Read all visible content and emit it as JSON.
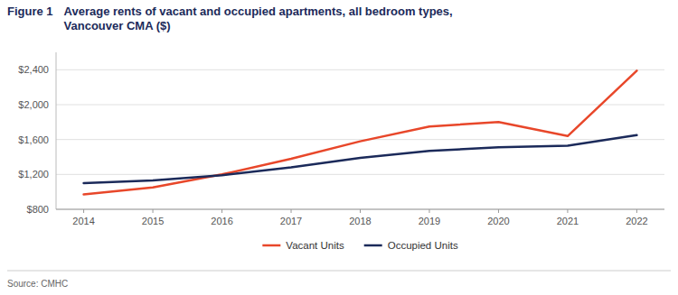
{
  "chart_data": {
    "type": "line",
    "title": "Average rents of vacant and occupied apartments, all bedroom types,\nVancouver CMA ($)",
    "annotations": [
      "Figure 1",
      "Source: CMHC"
    ],
    "x": [
      2014,
      2015,
      2016,
      2017,
      2018,
      2019,
      2020,
      2021,
      2022
    ],
    "series": [
      {
        "name": "Vacant Units",
        "color": "#E8472A",
        "values": [
          970,
          1050,
          1200,
          1380,
          1580,
          1750,
          1800,
          1640,
          2390
        ]
      },
      {
        "name": "Occupied Units",
        "color": "#1B2A5A",
        "values": [
          1100,
          1130,
          1190,
          1280,
          1390,
          1470,
          1510,
          1530,
          1650
        ]
      }
    ],
    "xlim": [
      2013.6,
      2022.4
    ],
    "xticks": [
      2014,
      2015,
      2016,
      2017,
      2018,
      2019,
      2020,
      2021,
      2022
    ],
    "ylim": [
      800,
      2600
    ],
    "yticks": [
      {
        "value": 800,
        "label": "$800"
      },
      {
        "value": 1200,
        "label": "$1,200"
      },
      {
        "value": 1600,
        "label": "$1,600"
      },
      {
        "value": 2000,
        "label": "$2,000"
      },
      {
        "value": 2400,
        "label": "$2,400"
      }
    ],
    "grid": true,
    "legend": "bottom"
  }
}
